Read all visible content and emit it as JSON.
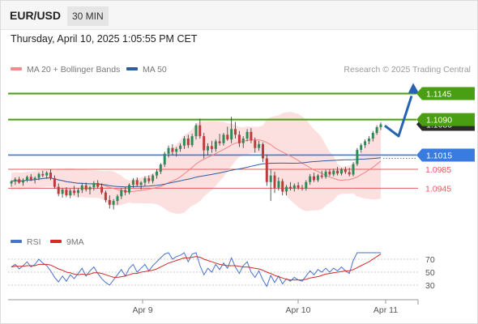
{
  "header": {
    "symbol": "EUR/USD",
    "timeframe": "30 MIN"
  },
  "timestamp": "Thursday, April 10, 2025 1:05:55 PM CET",
  "legend": [
    {
      "name": "MA 20 + Bollinger Bands",
      "color": "#f28b8b"
    },
    {
      "name": "MA 50",
      "color": "#2f5d9e"
    }
  ],
  "credit": "Research © 2025 Trading Central",
  "colors": {
    "up": "#2e8b57",
    "down": "#c03a3a",
    "resistance": "#4a9e12",
    "pivot": "#3a7be0",
    "support": "#e06060",
    "band": "#fbd9d9",
    "arrow": "#2663b3"
  },
  "chart_data": {
    "type": "candlestick",
    "price_range": [
      1.086,
      1.1175
    ],
    "x_labels": [
      "Apr 9",
      "Apr 10",
      "Apr 11"
    ],
    "levels": [
      {
        "value": 1.1145,
        "label": "1.1145",
        "kind": "resistance"
      },
      {
        "value": 1.109,
        "label": "1.1090",
        "kind": "resistance"
      },
      {
        "value": 1.108,
        "label": "1.1080",
        "kind": "last"
      },
      {
        "value": 1.1015,
        "label": "1.1015",
        "kind": "pivot"
      },
      {
        "value": 1.0985,
        "label": "1.0985",
        "kind": "support"
      },
      {
        "value": 1.0945,
        "label": "1.0945",
        "kind": "support"
      }
    ],
    "forecast_path": [
      1.1077,
      1.1055,
      1.114
    ],
    "candles": [
      [
        1.0955,
        1.0962,
        1.0948,
        1.0959
      ],
      [
        1.0959,
        1.0968,
        1.0952,
        1.0964
      ],
      [
        1.0964,
        1.0969,
        1.0954,
        1.0957
      ],
      [
        1.0957,
        1.0966,
        1.095,
        1.0962
      ],
      [
        1.0962,
        1.0972,
        1.0958,
        1.0969
      ],
      [
        1.0969,
        1.0975,
        1.096,
        1.0963
      ],
      [
        1.0963,
        1.097,
        1.0955,
        1.0967
      ],
      [
        1.0967,
        1.0978,
        1.0962,
        1.0975
      ],
      [
        1.0975,
        1.0982,
        1.0968,
        1.0972
      ],
      [
        1.0972,
        1.0981,
        1.0965,
        1.0978
      ],
      [
        1.0978,
        1.0985,
        1.0962,
        1.0966
      ],
      [
        1.0966,
        1.0972,
        1.0944,
        1.0948
      ],
      [
        1.0948,
        1.0955,
        1.0928,
        1.0933
      ],
      [
        1.0933,
        1.0945,
        1.0925,
        1.0942
      ],
      [
        1.0942,
        1.0947,
        1.0926,
        1.093
      ],
      [
        1.093,
        1.0944,
        1.0924,
        1.094
      ],
      [
        1.094,
        1.095,
        1.093,
        1.0935
      ],
      [
        1.0935,
        1.0945,
        1.0926,
        1.0941
      ],
      [
        1.0941,
        1.0955,
        1.0935,
        1.0951
      ],
      [
        1.0951,
        1.0957,
        1.0938,
        1.0942
      ],
      [
        1.0942,
        1.095,
        1.0932,
        1.0947
      ],
      [
        1.0947,
        1.096,
        1.094,
        1.0956
      ],
      [
        1.0956,
        1.0962,
        1.0944,
        1.0948
      ],
      [
        1.0948,
        1.0955,
        1.0932,
        1.0936
      ],
      [
        1.0936,
        1.094,
        1.0915,
        1.092
      ],
      [
        1.092,
        1.093,
        1.0902,
        1.091
      ],
      [
        1.091,
        1.0922,
        1.09,
        1.0918
      ],
      [
        1.0918,
        1.0932,
        1.091,
        1.0928
      ],
      [
        1.0928,
        1.0945,
        1.0922,
        1.0941
      ],
      [
        1.0941,
        1.0948,
        1.093,
        1.0936
      ],
      [
        1.0936,
        1.0955,
        1.0932,
        1.0952
      ],
      [
        1.0952,
        1.0966,
        1.0946,
        1.0962
      ],
      [
        1.0962,
        1.0968,
        1.0948,
        1.0952
      ],
      [
        1.0952,
        1.096,
        1.0942,
        1.0957
      ],
      [
        1.0957,
        1.097,
        1.095,
        1.0966
      ],
      [
        1.0966,
        1.0972,
        1.0955,
        1.096
      ],
      [
        1.096,
        1.0975,
        1.0955,
        1.0972
      ],
      [
        1.0972,
        1.0985,
        1.0965,
        1.098
      ],
      [
        1.098,
        1.0998,
        1.0975,
        1.0995
      ],
      [
        1.0995,
        1.1022,
        1.099,
        1.1018
      ],
      [
        1.1018,
        1.1035,
        1.101,
        1.103
      ],
      [
        1.103,
        1.1038,
        1.1015,
        1.1022
      ],
      [
        1.1022,
        1.1032,
        1.1012,
        1.1028
      ],
      [
        1.1028,
        1.104,
        1.1022,
        1.1035
      ],
      [
        1.1035,
        1.1055,
        1.1028,
        1.105
      ],
      [
        1.105,
        1.1058,
        1.103,
        1.1036
      ],
      [
        1.1036,
        1.106,
        1.1032,
        1.1055
      ],
      [
        1.1055,
        1.1082,
        1.1048,
        1.1078
      ],
      [
        1.1078,
        1.1092,
        1.105,
        1.1055
      ],
      [
        1.1055,
        1.1062,
        1.1008,
        1.1025
      ],
      [
        1.1025,
        1.104,
        1.1015,
        1.1034
      ],
      [
        1.1034,
        1.1045,
        1.102,
        1.1028
      ],
      [
        1.1028,
        1.1048,
        1.1022,
        1.1044
      ],
      [
        1.1044,
        1.106,
        1.1035,
        1.104
      ],
      [
        1.104,
        1.1062,
        1.1035,
        1.1058
      ],
      [
        1.1058,
        1.1075,
        1.1045,
        1.1048
      ],
      [
        1.1048,
        1.1096,
        1.104,
        1.107
      ],
      [
        1.107,
        1.1085,
        1.105,
        1.1058
      ],
      [
        1.1058,
        1.1066,
        1.1032,
        1.104
      ],
      [
        1.104,
        1.1055,
        1.103,
        1.105
      ],
      [
        1.105,
        1.107,
        1.1044,
        1.1064
      ],
      [
        1.1064,
        1.1072,
        1.104,
        1.1046
      ],
      [
        1.1046,
        1.1052,
        1.102,
        1.103
      ],
      [
        1.103,
        1.1045,
        1.1024,
        1.1038
      ],
      [
        1.1038,
        1.1042,
        1.1,
        1.1008
      ],
      [
        1.1008,
        1.1016,
        1.095,
        1.0958
      ],
      [
        1.0958,
        1.0985,
        1.0918,
        1.0972
      ],
      [
        1.0972,
        1.098,
        1.0935,
        1.0946
      ],
      [
        1.0946,
        1.0968,
        1.094,
        1.096
      ],
      [
        1.096,
        1.0965,
        1.093,
        1.0938
      ],
      [
        1.0938,
        1.0952,
        1.093,
        1.0948
      ],
      [
        1.0948,
        1.0958,
        1.094,
        1.0944
      ],
      [
        1.0944,
        1.0955,
        1.0938,
        1.0951
      ],
      [
        1.0951,
        1.0958,
        1.0942,
        1.0946
      ],
      [
        1.0946,
        1.0952,
        1.094,
        1.0944
      ],
      [
        1.0944,
        1.0962,
        1.094,
        1.0958
      ],
      [
        1.0958,
        1.0975,
        1.0952,
        1.097
      ],
      [
        1.097,
        1.0978,
        1.0958,
        1.0962
      ],
      [
        1.0962,
        1.0975,
        1.0958,
        1.0972
      ],
      [
        1.0972,
        1.0982,
        1.0965,
        1.0969
      ],
      [
        1.0969,
        1.0984,
        1.0965,
        1.098
      ],
      [
        1.098,
        1.0985,
        1.097,
        1.0974
      ],
      [
        1.0974,
        1.0986,
        1.097,
        1.0982
      ],
      [
        1.0982,
        1.099,
        1.0972,
        1.0976
      ],
      [
        1.0976,
        1.0988,
        1.0972,
        1.0985
      ],
      [
        1.0985,
        1.099,
        1.0975,
        1.0979
      ],
      [
        1.0979,
        1.0988,
        1.097,
        1.0974
      ],
      [
        1.0974,
        1.1,
        1.097,
        1.0996
      ],
      [
        1.0996,
        1.103,
        1.0992,
        1.1026
      ],
      [
        1.1026,
        1.104,
        1.102,
        1.1036
      ],
      [
        1.1036,
        1.1048,
        1.103,
        1.1044
      ],
      [
        1.1044,
        1.1055,
        1.1038,
        1.105
      ],
      [
        1.105,
        1.1066,
        1.1044,
        1.1062
      ],
      [
        1.1062,
        1.1078,
        1.1058,
        1.1074
      ],
      [
        1.1074,
        1.1084,
        1.1068,
        1.108
      ]
    ],
    "rsi_series": [
      {
        "name": "RSI",
        "color": "#4a72c8"
      },
      {
        "name": "9MA",
        "color": "#d42a2a"
      }
    ],
    "rsi_levels": [
      70,
      50,
      30
    ],
    "rsi_range": [
      15,
      80
    ],
    "rsi_values": [
      58,
      62,
      55,
      60,
      66,
      58,
      62,
      70,
      64,
      60,
      52,
      42,
      35,
      44,
      36,
      46,
      40,
      48,
      56,
      44,
      52,
      58,
      48,
      40,
      34,
      30,
      38,
      46,
      54,
      44,
      56,
      62,
      50,
      56,
      62,
      52,
      60,
      66,
      72,
      78,
      80,
      70,
      74,
      76,
      82,
      66,
      78,
      82,
      60,
      46,
      56,
      50,
      62,
      54,
      64,
      56,
      72,
      58,
      48,
      60,
      66,
      50,
      42,
      52,
      38,
      28,
      45,
      34,
      44,
      32,
      40,
      36,
      42,
      38,
      36,
      44,
      52,
      46,
      54,
      50,
      56,
      50,
      56,
      52,
      58,
      52,
      48,
      68,
      80,
      84,
      86,
      88,
      90,
      92,
      94
    ],
    "rsi_ma_values": [
      58,
      59,
      59,
      59,
      60,
      60,
      60,
      62,
      62,
      62,
      61,
      58,
      55,
      53,
      50,
      49,
      47,
      46,
      47,
      46,
      47,
      49,
      49,
      48,
      46,
      44,
      42,
      42,
      43,
      44,
      46,
      48,
      48,
      50,
      51,
      52,
      53,
      55,
      58,
      61,
      64,
      66,
      68,
      70,
      72,
      72,
      73,
      74,
      73,
      70,
      68,
      66,
      64,
      62,
      61,
      60,
      60,
      60,
      59,
      58,
      58,
      57,
      56,
      55,
      53,
      50,
      48,
      45,
      43,
      41,
      39,
      38,
      38,
      38,
      38,
      39,
      41,
      42,
      43,
      45,
      47,
      48,
      49,
      50,
      51,
      52,
      52,
      54,
      57,
      60,
      63,
      66,
      70,
      74,
      78
    ]
  }
}
